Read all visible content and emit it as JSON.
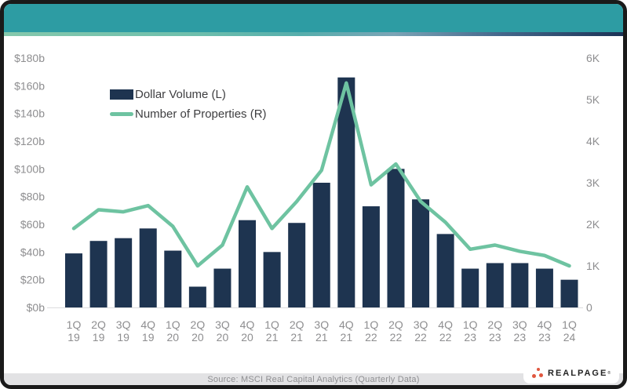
{
  "colors": {
    "frame": "#1a1a1a",
    "header_teal": "#2D9CA3",
    "strip_gradient_start": "#85C8AC",
    "strip_gradient_end": "#1C3356",
    "bar": "#1E3450",
    "line": "#6EC3A1",
    "axis_text": "#8E8E90",
    "axis_line": "#DCDCDE",
    "footer_bg": "#E2E2E4",
    "logo_orange": "#E0573F"
  },
  "legend": {
    "bar_label": "Dollar Volume (L)",
    "line_label": "Number of Properties (R)"
  },
  "chart_data": {
    "type": "combo",
    "categories": [
      "1Q 19",
      "2Q 19",
      "3Q 19",
      "4Q 19",
      "1Q 20",
      "2Q 20",
      "3Q 20",
      "4Q 20",
      "1Q 21",
      "2Q 21",
      "3Q 21",
      "4Q 21",
      "1Q 22",
      "2Q 22",
      "3Q 22",
      "4Q 22",
      "1Q 23",
      "2Q 23",
      "3Q 23",
      "4Q 23",
      "1Q 24"
    ],
    "series": [
      {
        "name": "Dollar Volume (L)",
        "type": "bar",
        "axis": "left",
        "unit": "billions USD",
        "color": "#1E3450",
        "values": [
          39,
          48,
          50,
          57,
          41,
          15,
          28,
          63,
          40,
          61,
          90,
          166,
          73,
          100,
          78,
          53,
          28,
          32,
          32,
          28,
          20
        ]
      },
      {
        "name": "Number of Properties (R)",
        "type": "line",
        "axis": "right",
        "unit": "properties",
        "color": "#6EC3A1",
        "values": [
          1900,
          2350,
          2300,
          2450,
          1950,
          1000,
          1500,
          2900,
          1900,
          2550,
          3300,
          5400,
          2950,
          3450,
          2550,
          2050,
          1400,
          1500,
          1350,
          1250,
          1000
        ]
      }
    ],
    "left_axis": {
      "min": 0,
      "max": 180,
      "tick_step": 20,
      "ticks": [
        "$0b",
        "$20b",
        "$40b",
        "$60b",
        "$80b",
        "$100b",
        "$120b",
        "$140b",
        "$160b",
        "$180b"
      ]
    },
    "right_axis": {
      "min": 0,
      "max": 6000,
      "tick_step": 1000,
      "ticks": [
        "0",
        "1K",
        "2K",
        "3K",
        "4K",
        "5K",
        "6K"
      ]
    },
    "grid": false,
    "legend_position": "top-left-inside",
    "title": ""
  },
  "footer": {
    "source": "Source: MSCI Real Capital Analytics (Quarterly Data)",
    "logo_text": "REALPAGE",
    "logo_reg": "®"
  }
}
